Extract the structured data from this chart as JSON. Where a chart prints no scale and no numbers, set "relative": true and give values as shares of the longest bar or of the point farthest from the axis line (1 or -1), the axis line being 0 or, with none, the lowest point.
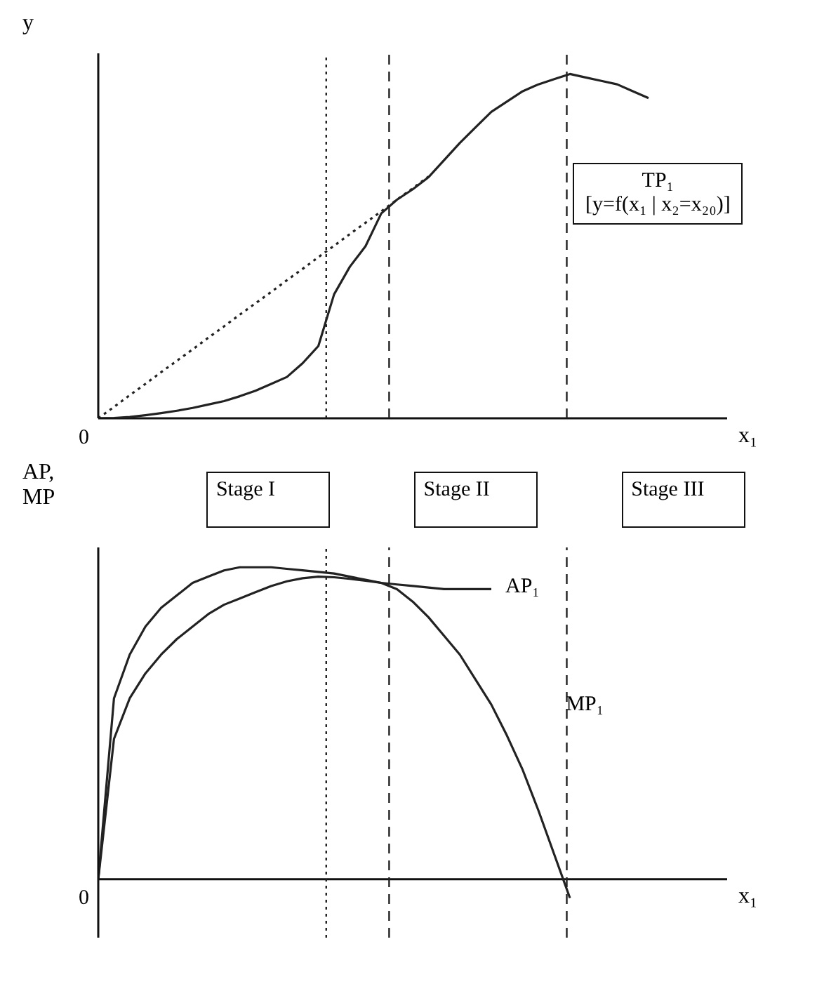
{
  "chart_data": [
    {
      "type": "line",
      "relative": true,
      "ylabel": "y",
      "xlabel": "x₁",
      "marker": "none",
      "categories": [
        null,
        null,
        null,
        null,
        null,
        null,
        null,
        null,
        null,
        null,
        null,
        null,
        null,
        null,
        null,
        null,
        null,
        null,
        null,
        null,
        null,
        null,
        null,
        null,
        null,
        null,
        null,
        null,
        null,
        null,
        null,
        null,
        null,
        null,
        null,
        null,
        null,
        null,
        null,
        null,
        null
      ],
      "annotations": [
        "0",
        "[y=f(x₁ | x₂=x₂₀)]"
      ],
      "series": [
        {
          "name": "TP₁",
          "color": "#222222",
          "line_style": "solid",
          "values": [
            0,
            0.001,
            0.004,
            0.009,
            0.015,
            0.022,
            0.03,
            0.04,
            0.05,
            0.064,
            0.08,
            0.1,
            0.12,
            0.16,
            0.21,
            0.36,
            0.44,
            0.5,
            0.595,
            0.635,
            0.665,
            0.7,
            0.75,
            0.8,
            0.845,
            0.89,
            0.92,
            0.95,
            0.97,
            0.985,
            1,
            0.99,
            0.98,
            0.97,
            0.95,
            0.93,
            null,
            null,
            null,
            null,
            null
          ]
        },
        {
          "color": "#222222",
          "line_style": "dotted",
          "values": [
            0,
            0.033,
            0.067,
            0.1,
            0.134,
            0.167,
            0.2,
            0.234,
            0.267,
            0.301,
            0.334,
            0.367,
            0.401,
            0.434,
            0.468,
            0.501,
            0.535,
            0.568,
            0.601,
            0.635,
            0.668,
            0.702,
            null,
            null,
            null,
            null,
            null,
            null,
            null,
            null,
            null,
            null,
            null,
            null,
            null,
            null,
            null,
            null,
            null,
            null,
            null
          ]
        }
      ]
    },
    {
      "type": "line",
      "relative": true,
      "ylabel": "AP, MP",
      "xlabel": "x₁",
      "marker": "none",
      "categories": [
        null,
        null,
        null,
        null,
        null,
        null,
        null,
        null,
        null,
        null,
        null,
        null,
        null,
        null,
        null,
        null,
        null,
        null,
        null,
        null,
        null,
        null,
        null,
        null,
        null,
        null,
        null,
        null,
        null,
        null,
        null,
        null,
        null,
        null,
        null,
        null,
        null,
        null,
        null,
        null,
        null
      ],
      "annotations": [
        "0",
        "Stage I",
        "Stage II",
        "Stage III"
      ],
      "series": [
        {
          "name": "AP₁",
          "color": "#222222",
          "line_style": "solid",
          "values": [
            0,
            0.45,
            0.58,
            0.66,
            0.72,
            0.77,
            0.81,
            0.85,
            0.88,
            0.9,
            0.92,
            0.94,
            0.955,
            0.965,
            0.97,
            0.968,
            0.963,
            0.957,
            0.95,
            0.945,
            0.94,
            0.935,
            0.93,
            0.93,
            0.93,
            0.93,
            null,
            null,
            null,
            null,
            null,
            null,
            null,
            null,
            null,
            null,
            null,
            null,
            null,
            null,
            null
          ]
        },
        {
          "name": "MP₁",
          "color": "#222222",
          "line_style": "solid",
          "values": [
            0,
            0.58,
            0.72,
            0.81,
            0.87,
            0.91,
            0.95,
            0.97,
            0.99,
            1,
            1,
            1,
            0.995,
            0.99,
            0.985,
            0.98,
            0.97,
            0.96,
            0.95,
            0.93,
            0.89,
            0.84,
            0.78,
            0.72,
            0.64,
            0.56,
            0.46,
            0.35,
            0.22,
            0.08,
            -0.06,
            null,
            null,
            null,
            null,
            null,
            null,
            null,
            null,
            null,
            null
          ]
        }
      ]
    }
  ]
}
